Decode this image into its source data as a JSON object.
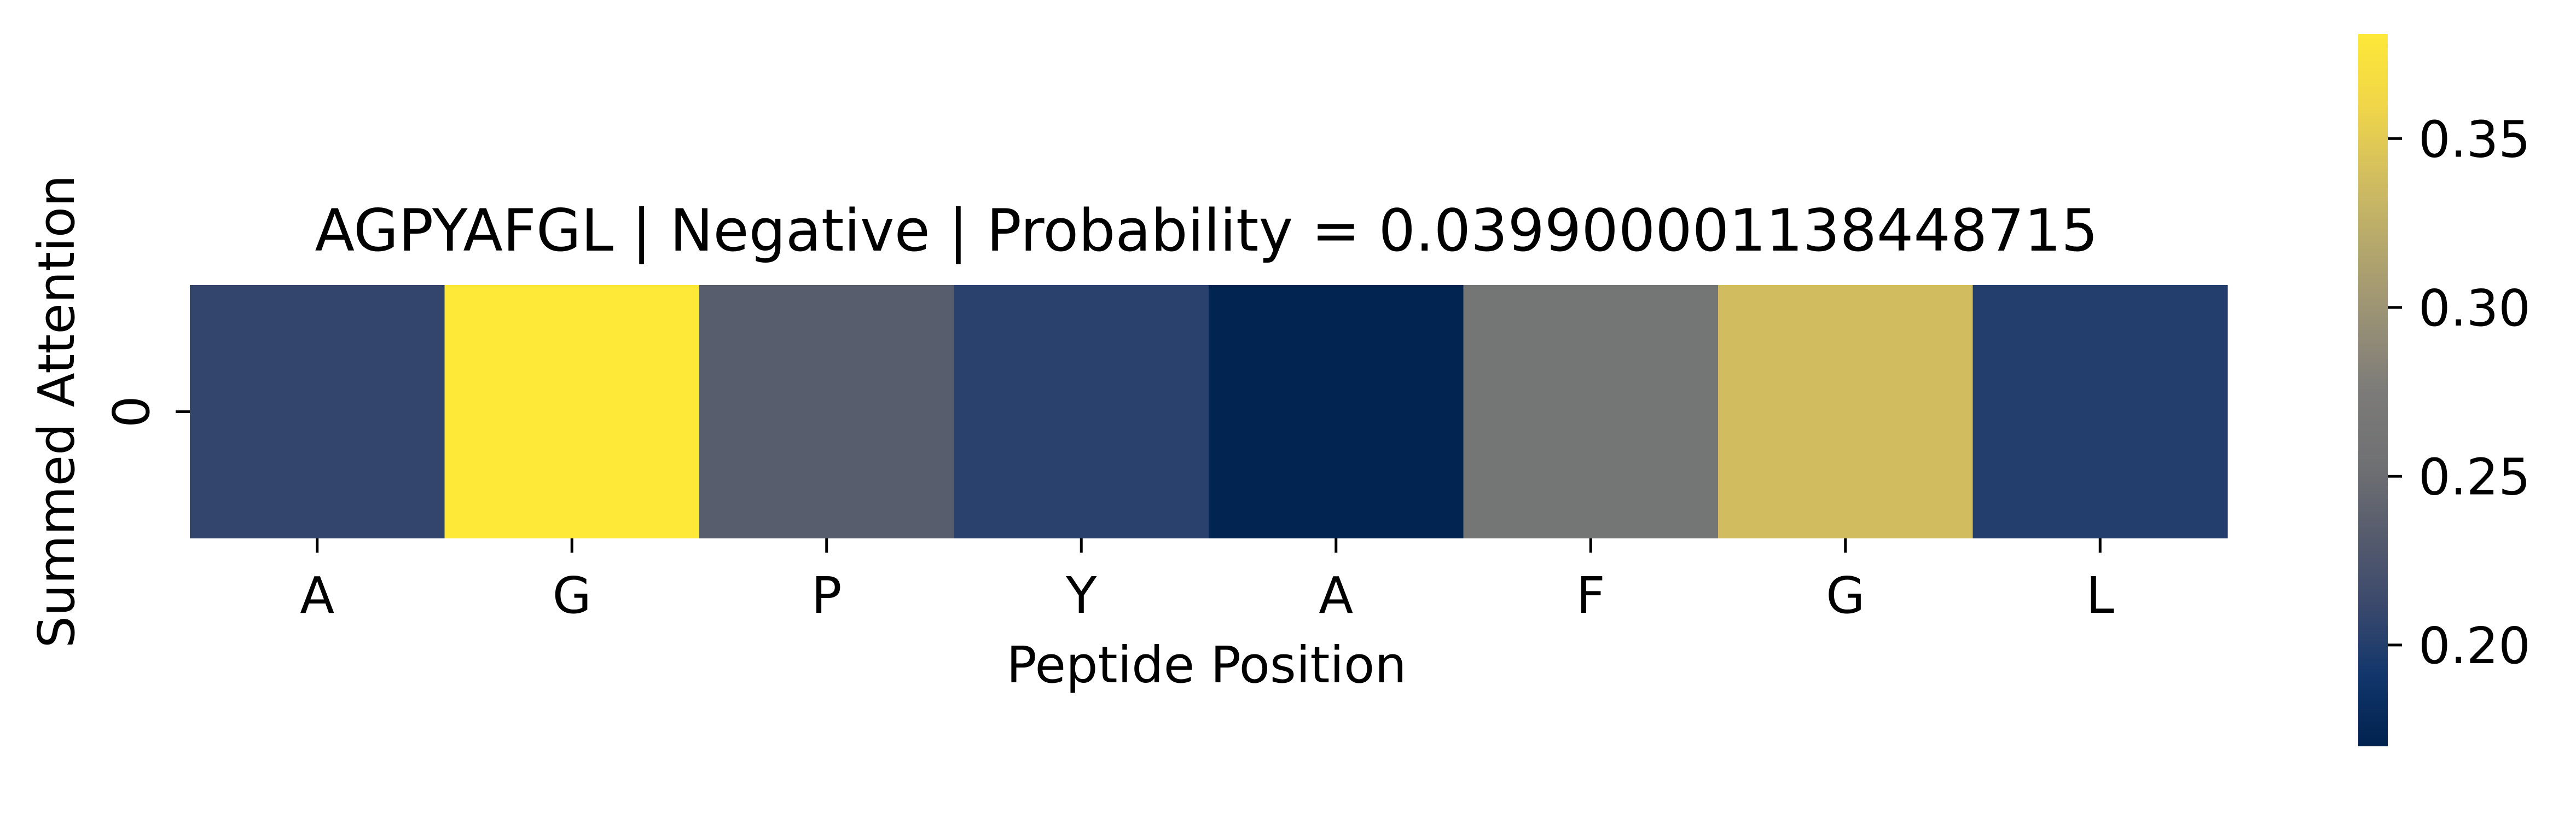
{
  "chart_data": {
    "type": "heatmap",
    "title": "AGPYAFGL | Negative | Probability = 0.039900001138448715",
    "xlabel": "Peptide Position",
    "ylabel": "Summed Attention",
    "x_tick_labels": [
      "A",
      "G",
      "P",
      "Y",
      "A",
      "F",
      "G",
      "L"
    ],
    "y_tick_labels": [
      "0"
    ],
    "values": [
      [
        0.208,
        0.381,
        0.234,
        0.203,
        0.172,
        0.262,
        0.338,
        0.2
      ]
    ],
    "colormap": "cividis",
    "colorbar": {
      "vmin": 0.17,
      "vmax": 0.381,
      "ticks": [
        0.2,
        0.25,
        0.3,
        0.35
      ],
      "tick_labels": [
        "0.20",
        "0.25",
        "0.30",
        "0.35"
      ]
    }
  }
}
